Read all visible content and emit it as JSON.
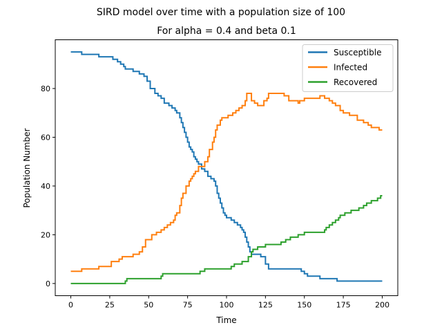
{
  "chart_data": {
    "type": "line",
    "title": "SIRD model over time with a population size of 100",
    "subtitle": "For alpha = 0.4 and beta 0.1",
    "xlabel": "Time",
    "ylabel": "Population Number",
    "xlim": [
      -10,
      210
    ],
    "ylim": [
      -5,
      100
    ],
    "xticks": [
      0,
      25,
      50,
      75,
      100,
      125,
      150,
      175,
      200
    ],
    "yticks": [
      0,
      20,
      40,
      60,
      80
    ],
    "grid": false,
    "legend_position": "top-right",
    "step": true,
    "series": [
      {
        "name": "Susceptible",
        "color": "#1f77b4",
        "points": [
          [
            0,
            95
          ],
          [
            7,
            94
          ],
          [
            18,
            93
          ],
          [
            27,
            92
          ],
          [
            30,
            91
          ],
          [
            32,
            90
          ],
          [
            34,
            89
          ],
          [
            35,
            88
          ],
          [
            40,
            87
          ],
          [
            44,
            86
          ],
          [
            47,
            85
          ],
          [
            49,
            83
          ],
          [
            51,
            80
          ],
          [
            54,
            78
          ],
          [
            56,
            77
          ],
          [
            58,
            76
          ],
          [
            60,
            74
          ],
          [
            63,
            73
          ],
          [
            65,
            72
          ],
          [
            67,
            71
          ],
          [
            68,
            70
          ],
          [
            70,
            68
          ],
          [
            71,
            66
          ],
          [
            72,
            64
          ],
          [
            73,
            62
          ],
          [
            74,
            60
          ],
          [
            75,
            58
          ],
          [
            76,
            56
          ],
          [
            77,
            55
          ],
          [
            78,
            54
          ],
          [
            79,
            52
          ],
          [
            80,
            51
          ],
          [
            81,
            50
          ],
          [
            82,
            49
          ],
          [
            84,
            47
          ],
          [
            86,
            46
          ],
          [
            88,
            44
          ],
          [
            90,
            43
          ],
          [
            92,
            42
          ],
          [
            93,
            40
          ],
          [
            94,
            37
          ],
          [
            95,
            35
          ],
          [
            96,
            33
          ],
          [
            97,
            31
          ],
          [
            98,
            29
          ],
          [
            99,
            28
          ],
          [
            100,
            27
          ],
          [
            103,
            26
          ],
          [
            105,
            25
          ],
          [
            107,
            24
          ],
          [
            109,
            23
          ],
          [
            110,
            22
          ],
          [
            111,
            21
          ],
          [
            112,
            19
          ],
          [
            113,
            17
          ],
          [
            114,
            15
          ],
          [
            115,
            13
          ],
          [
            116,
            12
          ],
          [
            122,
            11
          ],
          [
            125,
            8
          ],
          [
            127,
            6
          ],
          [
            148,
            5
          ],
          [
            150,
            4
          ],
          [
            152,
            3
          ],
          [
            160,
            2
          ],
          [
            171,
            1
          ],
          [
            200,
            1
          ]
        ]
      },
      {
        "name": "Infected",
        "color": "#ff7f0e",
        "points": [
          [
            0,
            5
          ],
          [
            7,
            6
          ],
          [
            18,
            7
          ],
          [
            26,
            9
          ],
          [
            31,
            10
          ],
          [
            33,
            11
          ],
          [
            40,
            12
          ],
          [
            44,
            13
          ],
          [
            46,
            15
          ],
          [
            48,
            18
          ],
          [
            52,
            20
          ],
          [
            55,
            21
          ],
          [
            58,
            22
          ],
          [
            60,
            23
          ],
          [
            62,
            24
          ],
          [
            64,
            25
          ],
          [
            66,
            26
          ],
          [
            67,
            28
          ],
          [
            68,
            29
          ],
          [
            70,
            32
          ],
          [
            71,
            35
          ],
          [
            72,
            37
          ],
          [
            74,
            40
          ],
          [
            76,
            42
          ],
          [
            77,
            43
          ],
          [
            78,
            44
          ],
          [
            79,
            45
          ],
          [
            80,
            46
          ],
          [
            82,
            48
          ],
          [
            85,
            48
          ],
          [
            86,
            50
          ],
          [
            88,
            52
          ],
          [
            89,
            55
          ],
          [
            91,
            58
          ],
          [
            92,
            60
          ],
          [
            93,
            63
          ],
          [
            94,
            65
          ],
          [
            96,
            67
          ],
          [
            97,
            68
          ],
          [
            101,
            69
          ],
          [
            104,
            70
          ],
          [
            106,
            71
          ],
          [
            108,
            72
          ],
          [
            110,
            73
          ],
          [
            112,
            75
          ],
          [
            113,
            78
          ],
          [
            116,
            75
          ],
          [
            118,
            74
          ],
          [
            120,
            73
          ],
          [
            124,
            75
          ],
          [
            126,
            76
          ],
          [
            127,
            78
          ],
          [
            137,
            77
          ],
          [
            140,
            75
          ],
          [
            146,
            74
          ],
          [
            147,
            75
          ],
          [
            150,
            76
          ],
          [
            160,
            77
          ],
          [
            163,
            76
          ],
          [
            166,
            75
          ],
          [
            168,
            74
          ],
          [
            170,
            73
          ],
          [
            173,
            71
          ],
          [
            175,
            70
          ],
          [
            179,
            69
          ],
          [
            184,
            67
          ],
          [
            188,
            66
          ],
          [
            191,
            65
          ],
          [
            193,
            64
          ],
          [
            198,
            63
          ],
          [
            200,
            63
          ]
        ]
      },
      {
        "name": "Recovered",
        "color": "#2ca02c",
        "points": [
          [
            0,
            0
          ],
          [
            35,
            1
          ],
          [
            36,
            2
          ],
          [
            58,
            3
          ],
          [
            59,
            4
          ],
          [
            72,
            4
          ],
          [
            83,
            5
          ],
          [
            86,
            6
          ],
          [
            103,
            7
          ],
          [
            105,
            8
          ],
          [
            110,
            9
          ],
          [
            114,
            11
          ],
          [
            116,
            13
          ],
          [
            117,
            14
          ],
          [
            120,
            15
          ],
          [
            125,
            16
          ],
          [
            135,
            17
          ],
          [
            138,
            18
          ],
          [
            141,
            19
          ],
          [
            146,
            20
          ],
          [
            150,
            21
          ],
          [
            163,
            22
          ],
          [
            164,
            23
          ],
          [
            166,
            24
          ],
          [
            168,
            25
          ],
          [
            170,
            26
          ],
          [
            172,
            27
          ],
          [
            173,
            28
          ],
          [
            176,
            29
          ],
          [
            180,
            30
          ],
          [
            185,
            31
          ],
          [
            188,
            32
          ],
          [
            190,
            33
          ],
          [
            193,
            34
          ],
          [
            197,
            35
          ],
          [
            199,
            36
          ],
          [
            200,
            36
          ]
        ]
      }
    ]
  }
}
